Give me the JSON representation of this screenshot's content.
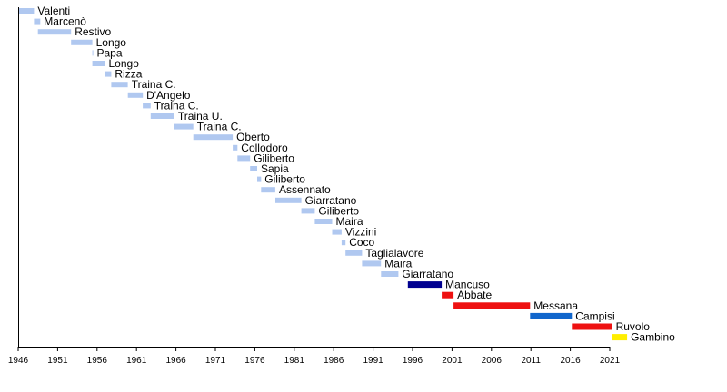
{
  "chart_data": {
    "type": "bar",
    "orientation": "horizontal-timeline",
    "xlim": [
      1946,
      2021
    ],
    "x_ticks": [
      1946,
      1951,
      1956,
      1961,
      1966,
      1971,
      1976,
      1981,
      1986,
      1991,
      1996,
      2001,
      2006,
      2011,
      2016,
      2021
    ],
    "grid": false,
    "legend": "none",
    "colors": {
      "early": "#b0c8f0",
      "red": "#ee1111",
      "navy": "#000090",
      "blue": "#1166cc",
      "yellow": "#ffee00"
    },
    "series": [
      {
        "label": "Valenti",
        "start": 1946.0,
        "end": 1948.0,
        "color": "early"
      },
      {
        "label": "Marcenò",
        "start": 1948.0,
        "end": 1948.8,
        "color": "early"
      },
      {
        "label": "Restivo",
        "start": 1948.5,
        "end": 1952.7,
        "color": "early"
      },
      {
        "label": "Longo",
        "start": 1952.7,
        "end": 1955.4,
        "color": "early"
      },
      {
        "label": "Papa",
        "start": 1955.4,
        "end": 1955.5,
        "color": "early"
      },
      {
        "label": "Longo",
        "start": 1955.4,
        "end": 1957.0,
        "color": "early"
      },
      {
        "label": "Rizza",
        "start": 1957.0,
        "end": 1957.8,
        "color": "early"
      },
      {
        "label": "Traina C.",
        "start": 1957.8,
        "end": 1959.9,
        "color": "early"
      },
      {
        "label": "D'Angelo",
        "start": 1959.9,
        "end": 1961.8,
        "color": "early"
      },
      {
        "label": "Traina C.",
        "start": 1961.8,
        "end": 1962.8,
        "color": "early"
      },
      {
        "label": "Traina U.",
        "start": 1962.8,
        "end": 1965.8,
        "color": "early"
      },
      {
        "label": "Traina C.",
        "start": 1965.8,
        "end": 1968.2,
        "color": "early"
      },
      {
        "label": "Oberto",
        "start": 1968.2,
        "end": 1973.2,
        "color": "early"
      },
      {
        "label": "Collodoro",
        "start": 1973.2,
        "end": 1973.8,
        "color": "early"
      },
      {
        "label": "Giliberto",
        "start": 1973.8,
        "end": 1975.4,
        "color": "early"
      },
      {
        "label": "Sapia",
        "start": 1975.4,
        "end": 1976.3,
        "color": "early"
      },
      {
        "label": "Giliberto",
        "start": 1976.3,
        "end": 1976.8,
        "color": "early"
      },
      {
        "label": "Assennato",
        "start": 1976.8,
        "end": 1978.6,
        "color": "early"
      },
      {
        "label": "Giarratano",
        "start": 1978.6,
        "end": 1981.9,
        "color": "early"
      },
      {
        "label": "Giliberto",
        "start": 1981.9,
        "end": 1983.6,
        "color": "early"
      },
      {
        "label": "Maira",
        "start": 1983.6,
        "end": 1985.8,
        "color": "early"
      },
      {
        "label": "Vizzini",
        "start": 1985.8,
        "end": 1987.0,
        "color": "early"
      },
      {
        "label": "Coco",
        "start": 1987.0,
        "end": 1987.5,
        "color": "early"
      },
      {
        "label": "Taglialavore",
        "start": 1987.5,
        "end": 1989.6,
        "color": "early"
      },
      {
        "label": "Maira",
        "start": 1989.6,
        "end": 1992.0,
        "color": "early"
      },
      {
        "label": "Giarratano",
        "start": 1992.0,
        "end": 1994.2,
        "color": "early"
      },
      {
        "label": "Mancuso",
        "start": 1995.4,
        "end": 1999.7,
        "color": "navy"
      },
      {
        "label": "Abbate",
        "start": 1999.7,
        "end": 2001.2,
        "color": "red"
      },
      {
        "label": "Messana",
        "start": 2001.2,
        "end": 2010.9,
        "color": "red"
      },
      {
        "label": "Campisi",
        "start": 2010.9,
        "end": 2016.2,
        "color": "blue"
      },
      {
        "label": "Ruvolo",
        "start": 2016.2,
        "end": 2021.3,
        "color": "red"
      },
      {
        "label": "Gambino",
        "start": 2021.3,
        "end": 2023.2,
        "color": "yellow"
      }
    ]
  }
}
